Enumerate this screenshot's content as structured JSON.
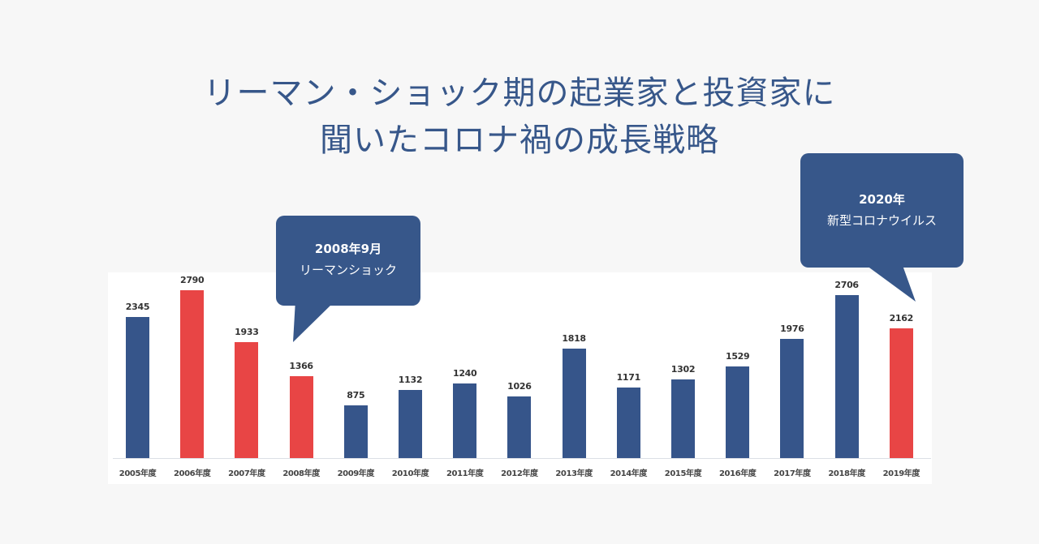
{
  "title": {
    "line1": "リーマン・ショック期の起業家と投資家に",
    "line2": "聞いたコロナ禍の成長戦略"
  },
  "colors": {
    "title": "#37578a",
    "bar_default": "#36558a",
    "bar_highlight": "#e84545",
    "bubble": "#37578a",
    "page_bg": "#f7f7f7",
    "panel_bg": "#ffffff"
  },
  "callouts": [
    {
      "line1": "2008年9月",
      "line2": "リーマンショック"
    },
    {
      "line1": "2020年",
      "line2": "新型コロナウイルス"
    }
  ],
  "chart_data": {
    "type": "bar",
    "title": "",
    "xlabel": "",
    "ylabel": "",
    "categories": [
      "2005年度",
      "2006年度",
      "2007年度",
      "2008年度",
      "2009年度",
      "2010年度",
      "2011年度",
      "2012年度",
      "2013年度",
      "2014年度",
      "2015年度",
      "2016年度",
      "2017年度",
      "2018年度",
      "2019年度"
    ],
    "values": [
      2345,
      2790,
      1933,
      1366,
      875,
      1132,
      1240,
      1026,
      1818,
      1171,
      1302,
      1529,
      1976,
      2706,
      2162
    ],
    "value_labels": [
      "2345",
      "2790",
      "1933",
      "1366",
      "875",
      "1132",
      "1240",
      "1026",
      "1818",
      "1171",
      "1302",
      "1529",
      "1976",
      "2706",
      "2162"
    ],
    "highlighted": [
      false,
      true,
      true,
      true,
      false,
      false,
      false,
      false,
      false,
      false,
      false,
      false,
      false,
      false,
      true
    ],
    "ylim": [
      0,
      2790
    ],
    "grid": false,
    "legend": "none",
    "annotations": [
      {
        "text": "2008年9月 リーマンショック",
        "points_to": "2008年度"
      },
      {
        "text": "2020年 新型コロナウイルス",
        "points_to": "2019年度"
      }
    ]
  }
}
